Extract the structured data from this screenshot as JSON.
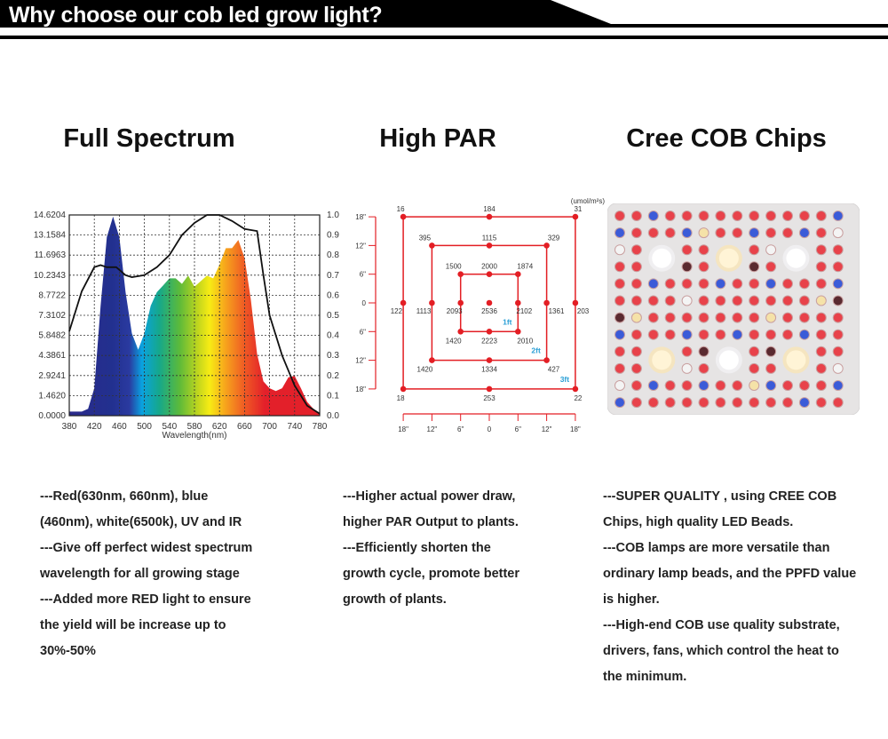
{
  "header": {
    "title": "Why choose our cob led grow light?"
  },
  "columns": [
    {
      "heading": "Full Spectrum",
      "lines": [
        "---Red(630nm, 660nm), blue",
        "(460nm), white(6500k), UV and IR",
        "---Give off perfect  widest spectrum",
        "wavelength for all growing stage",
        "---Added more RED light to ensure",
        "the yield will be increase up to",
        "30%-50%"
      ]
    },
    {
      "heading": "High PAR",
      "lines": [
        "---Higher actual power draw,",
        "higher PAR Output to plants.",
        "---Efficiently shorten the",
        "growth cycle, promote better",
        "growth of plants."
      ]
    },
    {
      "heading": "Cree COB Chips",
      "lines": [
        "---SUPER QUALITY , using CREE COB",
        "Chips, high quality LED Beads.",
        "---COB lamps are more versatile than",
        "ordinary lamp beads, and the PPFD value",
        "is higher.",
        "---High-end COB use quality substrate,",
        "drivers, fans, which control the heat to",
        "the minimum."
      ]
    }
  ],
  "chart_data": [
    {
      "type": "area",
      "xlabel": "Wavelength(nm)",
      "xlim": [
        380,
        780
      ],
      "xticks": [
        "380",
        "420",
        "460",
        "500",
        "540",
        "580",
        "620",
        "660",
        "700",
        "740",
        "780"
      ],
      "ylim_left": [
        0,
        14.6204
      ],
      "yticks_left": [
        "0.0000",
        "1.4620",
        "2.9241",
        "4.3861",
        "5.8482",
        "7.3102",
        "8.7722",
        "10.2343",
        "11.6963",
        "13.1584",
        "14.6204"
      ],
      "ylim_right": [
        0,
        1.0
      ],
      "yticks_right": [
        "0.0",
        "0.1",
        "0.2",
        "0.3",
        "0.4",
        "0.5",
        "0.6",
        "0.7",
        "0.8",
        "0.9",
        "1.0"
      ],
      "grid": true,
      "series": [
        {
          "axis": "left",
          "fill": "spectrum-gradient",
          "x": [
            380,
            400,
            410,
            420,
            430,
            440,
            450,
            460,
            470,
            480,
            490,
            500,
            510,
            520,
            530,
            540,
            550,
            560,
            570,
            580,
            590,
            600,
            610,
            620,
            630,
            640,
            650,
            660,
            670,
            680,
            690,
            700,
            710,
            720,
            730,
            740,
            750,
            760,
            770,
            780
          ],
          "y": [
            0.3,
            0.3,
            0.5,
            2,
            8,
            13,
            14.5,
            13,
            9,
            6,
            4.8,
            6,
            8,
            9,
            9.5,
            10,
            10,
            9.6,
            10.2,
            9.4,
            9.8,
            10.2,
            10,
            11,
            12.2,
            12.2,
            12.8,
            11.5,
            8.5,
            4.5,
            2.5,
            2.0,
            1.8,
            2.0,
            2.8,
            2.9,
            2.0,
            1.0,
            0.5,
            0.2
          ]
        },
        {
          "axis": "right",
          "color": "#111111",
          "x": [
            380,
            400,
            420,
            430,
            440,
            455,
            470,
            480,
            500,
            520,
            540,
            560,
            580,
            600,
            620,
            640,
            660,
            680,
            690,
            700,
            720,
            740,
            760,
            780
          ],
          "y": [
            0.42,
            0.62,
            0.74,
            0.75,
            0.74,
            0.74,
            0.7,
            0.69,
            0.7,
            0.74,
            0.8,
            0.9,
            0.96,
            1.0,
            1.0,
            0.97,
            0.93,
            0.92,
            0.7,
            0.5,
            0.3,
            0.15,
            0.05,
            0.01
          ]
        }
      ]
    },
    {
      "type": "table",
      "unit": "(umol/m²s)",
      "axis_ticks": [
        "18\"",
        "12\"",
        "6\"",
        "0",
        "6\"",
        "12\"",
        "18\""
      ],
      "color": "#e31e24",
      "label_color": "#2a9fd6",
      "rings": [
        {
          "label": "1ft",
          "values": {
            "tl": "1500",
            "t": "2000",
            "tr": "1874",
            "l": "2093",
            "r": "2102",
            "bl": "1420",
            "b": "2223",
            "br": "2010"
          }
        },
        {
          "label": "2ft",
          "values": {
            "tl": "395",
            "t": "1115",
            "tr": "329",
            "l": "1113",
            "r": "1361",
            "bl": "1420",
            "b": "1334",
            "br": "427"
          }
        },
        {
          "label": "3ft",
          "values": {
            "tl": "16",
            "t": "184",
            "tr": "31",
            "l": "122",
            "r": "203",
            "bl": "18",
            "b": "253",
            "br": "22"
          }
        }
      ],
      "center": "2536"
    }
  ],
  "colors": {
    "red": "#e31e24",
    "blue": "#2a9fd6",
    "led_red": "#e8424a",
    "led_blue": "#3b5bd8",
    "panel": "#e6e4e4"
  }
}
